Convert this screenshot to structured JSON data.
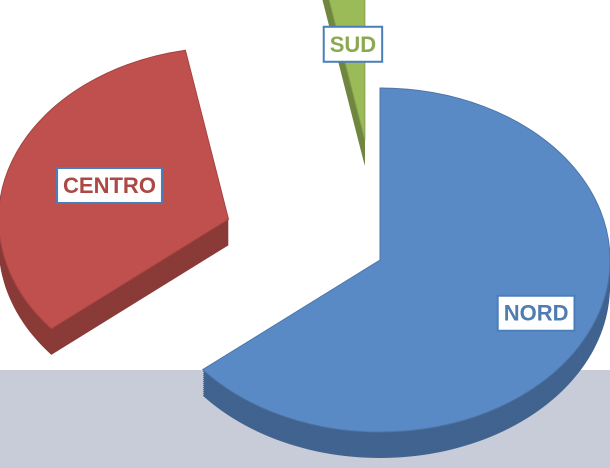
{
  "chart_data": {
    "type": "pie",
    "categories": [
      "NORD",
      "CENTRO",
      "SUD"
    ],
    "values": [
      64,
      33,
      3
    ],
    "colors": [
      "#5a8ac6",
      "#c0504d",
      "#9bbb59"
    ]
  }
}
